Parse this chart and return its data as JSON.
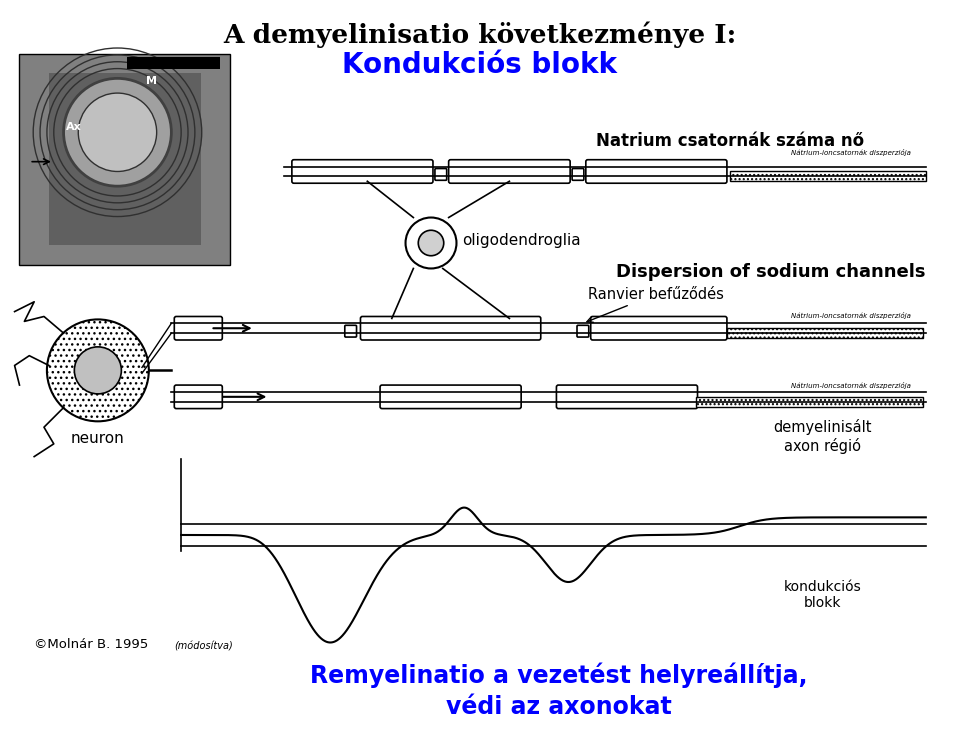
{
  "title": "A demyelinisatio következménye I:",
  "subtitle": "Kondukciós blokk",
  "subtitle_color": "#0000FF",
  "text_natrium_top": "Natrium csatornák száma nő",
  "text_dispersion": "Dispersion of sodium channels",
  "text_oligodendroglia": "oligodendroglia",
  "text_ranvier": "Ranvier befűződés",
  "text_neuron": "neuron",
  "text_demyelinisalt": "demyelinisált\naxon régió",
  "text_kondukcios": "kondukciós\nblokk",
  "text_remyelinatio": "Remyelinatio a vezetést helyreállítja,\nvédi az axonokat",
  "text_remyelinatio_color": "#0000FF",
  "text_molnar": "©Molnár B. 1995",
  "text_molnar_small": "(módosítva)",
  "text_natrium_small_1": "Nátrium-ioncsatornák diszperziója",
  "text_natrium_small_2": "Nátrium-ioncsatornák diszperziója",
  "text_natrium_small_3": "Nátrium-ioncsatornák diszperziója",
  "bg_color": "#FFFFFF",
  "line_color": "#000000"
}
